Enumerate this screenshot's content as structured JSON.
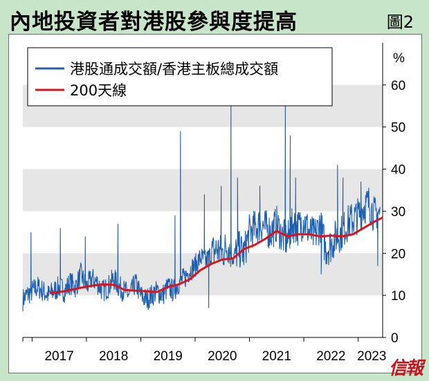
{
  "header": {
    "title": "內地投資者對港股參與度提高",
    "figure_label": "圖2"
  },
  "brand": {
    "logo_text": "信報"
  },
  "colors": {
    "background": "#c7e6c9",
    "band": "#e6e6e6",
    "ratio_line": "#1f5fad",
    "ma_line": "#d9141c"
  },
  "chart_data": {
    "type": "line",
    "title": "",
    "ylabel": "%",
    "ylim": [
      0,
      70
    ],
    "yticks": [
      0,
      10,
      20,
      30,
      40,
      50,
      60
    ],
    "xlim": [
      2016.83,
      2023.45
    ],
    "x_tick_labels": [
      "2017",
      "2018",
      "2019",
      "2020",
      "2021",
      "2022",
      "2023"
    ],
    "grid": "alternating horizontal grey bands every 10",
    "legend_position": "top-left",
    "series": [
      {
        "name": "港股通成交額/香港主板總成交額",
        "style": "daily, noisy",
        "x": [
          2016.83,
          2016.9,
          2017.0,
          2017.1,
          2017.2,
          2017.3,
          2017.4,
          2017.5,
          2017.6,
          2017.7,
          2017.8,
          2017.9,
          2018.0,
          2018.1,
          2018.2,
          2018.3,
          2018.4,
          2018.5,
          2018.6,
          2018.7,
          2018.8,
          2018.9,
          2019.0,
          2019.1,
          2019.2,
          2019.3,
          2019.4,
          2019.5,
          2019.6,
          2019.7,
          2019.8,
          2019.9,
          2020.0,
          2020.1,
          2020.2,
          2020.3,
          2020.4,
          2020.5,
          2020.6,
          2020.7,
          2020.8,
          2020.9,
          2021.0,
          2021.1,
          2021.2,
          2021.3,
          2021.4,
          2021.5,
          2021.6,
          2021.7,
          2021.8,
          2021.9,
          2022.0,
          2022.1,
          2022.2,
          2022.3,
          2022.4,
          2022.5,
          2022.6,
          2022.7,
          2022.8,
          2022.9,
          2023.0,
          2023.1,
          2023.2,
          2023.3,
          2023.35,
          2023.4
        ],
        "values": [
          9,
          10,
          11,
          12,
          11,
          10,
          11,
          12,
          11,
          13,
          12,
          15,
          12,
          14,
          13,
          11,
          12,
          14,
          12,
          11,
          10,
          13,
          10,
          9,
          10,
          11,
          10,
          12,
          11,
          13,
          14,
          16,
          17,
          19,
          18,
          20,
          21,
          20,
          22,
          19,
          21,
          20,
          25,
          26,
          27,
          26,
          25,
          27,
          24,
          23,
          27,
          26,
          28,
          25,
          24,
          27,
          21,
          22,
          24,
          25,
          27,
          28,
          29,
          31,
          32,
          29,
          30,
          29
        ],
        "spikes": [
          {
            "x": 2016.98,
            "value": 25
          },
          {
            "x": 2017.52,
            "value": 26
          },
          {
            "x": 2017.98,
            "value": 24
          },
          {
            "x": 2018.58,
            "value": 27
          },
          {
            "x": 2019.63,
            "value": 29
          },
          {
            "x": 2019.73,
            "value": 49
          },
          {
            "x": 2020.17,
            "value": 34
          },
          {
            "x": 2020.25,
            "value": 7
          },
          {
            "x": 2020.48,
            "value": 36
          },
          {
            "x": 2020.66,
            "value": 59
          },
          {
            "x": 2020.78,
            "value": 38
          },
          {
            "x": 2021.19,
            "value": 36
          },
          {
            "x": 2021.66,
            "value": 57
          },
          {
            "x": 2021.75,
            "value": 48
          },
          {
            "x": 2021.85,
            "value": 38
          },
          {
            "x": 2022.32,
            "value": 15
          },
          {
            "x": 2022.62,
            "value": 41
          },
          {
            "x": 2022.72,
            "value": 38
          },
          {
            "x": 2023.05,
            "value": 37
          },
          {
            "x": 2023.36,
            "value": 17
          }
        ]
      },
      {
        "name": "200天線",
        "x": [
          2017.33,
          2017.6,
          2017.9,
          2018.1,
          2018.3,
          2018.5,
          2018.7,
          2018.9,
          2019.1,
          2019.3,
          2019.5,
          2019.7,
          2019.9,
          2020.1,
          2020.3,
          2020.5,
          2020.7,
          2020.9,
          2021.1,
          2021.3,
          2021.5,
          2021.7,
          2021.9,
          2022.1,
          2022.3,
          2022.5,
          2022.7,
          2022.9,
          2023.1,
          2023.3,
          2023.45
        ],
        "values": [
          10.5,
          11,
          11.8,
          12.3,
          12.6,
          12.5,
          11.3,
          11.1,
          11,
          10.8,
          12,
          12.6,
          13.8,
          16,
          17.5,
          18.5,
          18.8,
          21,
          22,
          23.5,
          25.3,
          24,
          24.5,
          24.5,
          24,
          24.2,
          24,
          24.5,
          26,
          27.5,
          28.5
        ]
      }
    ]
  }
}
